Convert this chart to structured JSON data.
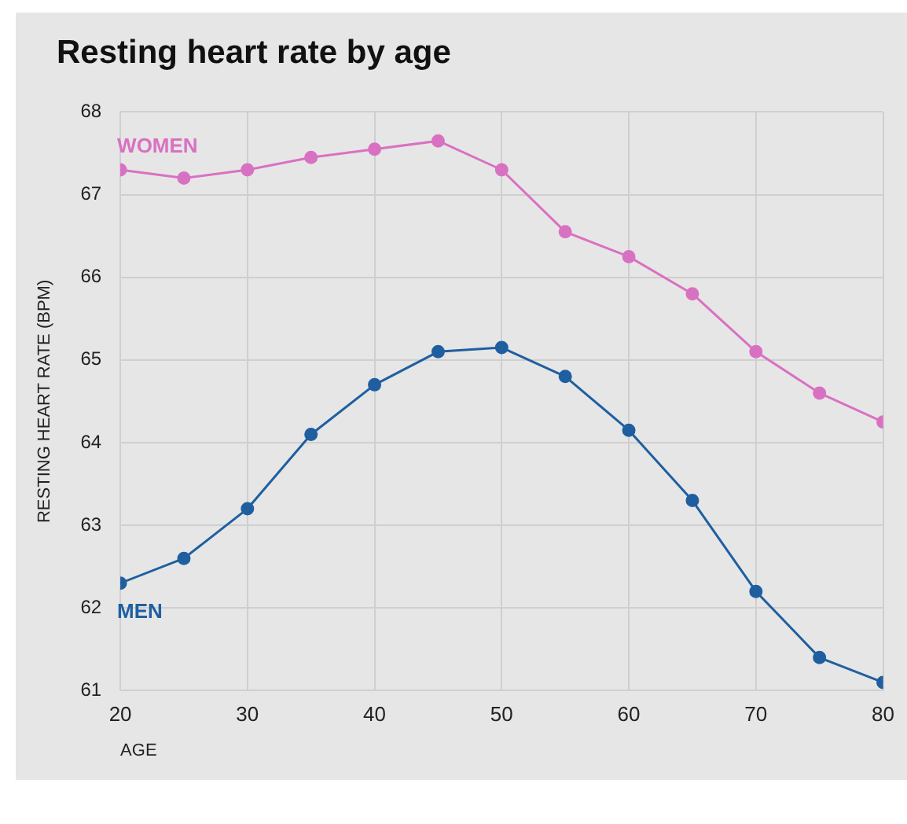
{
  "chart_data": {
    "type": "line",
    "title": "Resting heart rate by age",
    "xlabel": "AGE",
    "ylabel": "RESTING HEART RATE (BPM)",
    "x": [
      20,
      25,
      30,
      35,
      40,
      45,
      50,
      55,
      60,
      65,
      70,
      75,
      80
    ],
    "series": [
      {
        "name": "WOMEN",
        "color": "#d971c2",
        "values": [
          67.3,
          67.2,
          67.3,
          67.45,
          67.55,
          67.65,
          67.3,
          66.55,
          66.25,
          65.8,
          65.1,
          64.6,
          64.25
        ]
      },
      {
        "name": "MEN",
        "color": "#1f5fa0",
        "values": [
          62.3,
          62.6,
          63.2,
          64.1,
          64.7,
          65.1,
          65.15,
          64.8,
          64.15,
          63.3,
          62.2,
          61.4,
          61.1
        ]
      }
    ],
    "xlim": [
      20,
      80
    ],
    "xticks": [
      20,
      30,
      40,
      50,
      60,
      70,
      80
    ],
    "ylim": [
      61,
      68
    ],
    "yticks": [
      61,
      62,
      63,
      64,
      65,
      66,
      67,
      68
    ],
    "grid": true,
    "legend": false,
    "marker": "circle",
    "line_style": "solid"
  }
}
